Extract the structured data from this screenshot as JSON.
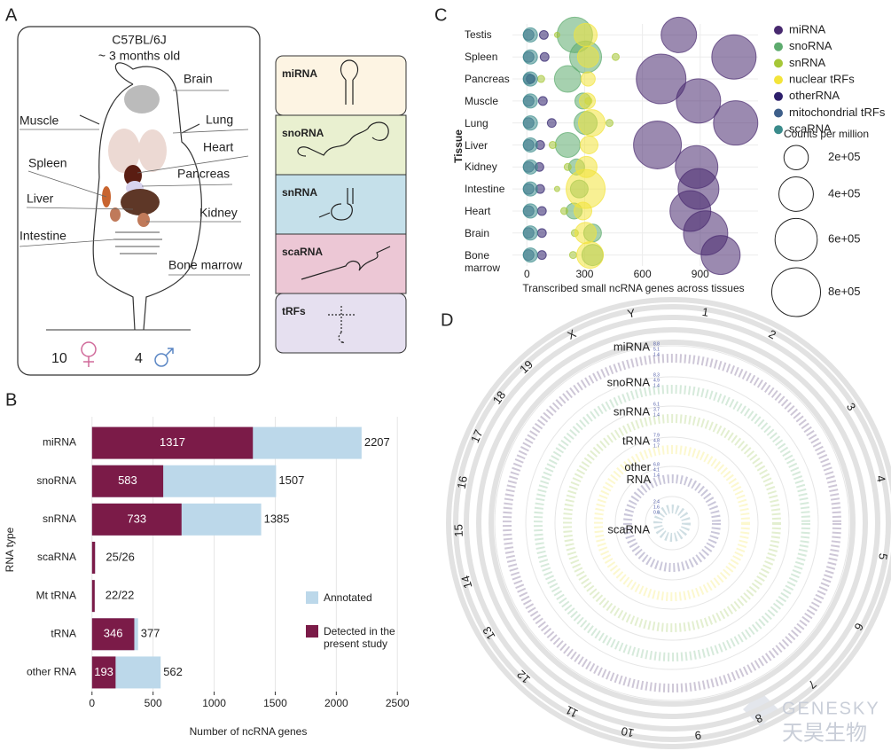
{
  "panel_labels": [
    "A",
    "B",
    "C",
    "D"
  ],
  "panel_a": {
    "title": "C57BL/6J",
    "subtitle": "~ 3 months old",
    "organs": [
      "Brain",
      "Muscle",
      "Lung",
      "Heart",
      "Spleen",
      "Pancreas",
      "Liver",
      "Kidney",
      "Intestine",
      "Bone marrow"
    ],
    "female_count": "10",
    "male_count": "4",
    "rna_types": [
      "miRNA",
      "snoRNA",
      "snRNA",
      "scaRNA",
      "tRFs"
    ]
  },
  "chart_data": [
    {
      "type": "bar",
      "orientation": "horizontal",
      "categories": [
        "miRNA",
        "snoRNA",
        "snRNA",
        "scaRNA",
        "Mt tRNA",
        "tRNA",
        "other RNA"
      ],
      "series": [
        {
          "name": "Annotated",
          "color": "#bcd8ea",
          "values": [
            2207,
            1507,
            1385,
            26,
            22,
            377,
            562
          ],
          "value_labels": [
            "2207",
            "1507",
            "1385",
            null,
            null,
            "377",
            "562"
          ]
        },
        {
          "name": "Detected in the present study",
          "color": "#7b1b48",
          "values": [
            1317,
            583,
            733,
            25,
            22,
            346,
            193
          ],
          "value_labels": [
            "1317",
            "583",
            "733",
            null,
            null,
            "346",
            "193"
          ]
        }
      ],
      "ratio_labels": [
        null,
        null,
        null,
        "25/26",
        "22/22",
        null,
        null
      ],
      "xlim": [
        -100,
        2600
      ],
      "xticks": [
        0,
        500,
        1000,
        1500,
        2000,
        2500
      ],
      "xlabel": "Number of ncRNA genes",
      "ylabel": "RNA type",
      "grid": true,
      "legend": "right"
    },
    {
      "type": "bubble",
      "categories": [
        "Testis",
        "Spleen",
        "Pancreas",
        "Muscle",
        "Lung",
        "Liver",
        "Kidney",
        "Intestine",
        "Heart",
        "Brain",
        "Bone marrow"
      ],
      "series": [
        {
          "name": "miRNA",
          "color": "#48296f",
          "values": [
            789,
            1075,
            697,
            891,
            1084,
            678,
            881,
            891,
            849,
            928,
            1006
          ],
          "sizes": [
            423000,
            661000,
            830000,
            661000,
            661000,
            770000,
            610000,
            560000,
            560000,
            661000,
            512000
          ]
        },
        {
          "name": "snoRNA",
          "color": "#5dab6e",
          "values": [
            249,
            305,
            212,
            291,
            305,
            212,
            258,
            272,
            245,
            341,
            341
          ],
          "sizes": [
            423000,
            343000,
            238000,
            86000,
            179000,
            207000,
            86000,
            106000,
            86000,
            106000,
            152000
          ]
        },
        {
          "name": "snRNA",
          "color": "#a6c737",
          "values": [
            157,
            461,
            74,
            320,
            429,
            134,
            212,
            157,
            194,
            249,
            240
          ],
          "sizes": [
            9500,
            17000,
            17000,
            17000,
            17000,
            17000,
            17000,
            9500,
            17000,
            17000,
            17000
          ]
        },
        {
          "name": "nuclear tRFs",
          "color": "#f3e43a",
          "values": [
            305,
            318,
            318,
            314,
            337,
            323,
            309,
            305,
            291,
            305,
            328
          ],
          "sizes": [
            179000,
            152000,
            68000,
            86000,
            238000,
            106000,
            152000,
            512000,
            106000,
            152000,
            238000
          ]
        },
        {
          "name": "otherRNA",
          "color": "#2d1f6b",
          "values": [
            88,
            92,
            20,
            83,
            129,
            69,
            65,
            69,
            78,
            78,
            78
          ],
          "sizes": [
            26000,
            26000,
            26000,
            26000,
            26000,
            26000,
            26000,
            26000,
            26000,
            26000,
            26000
          ]
        },
        {
          "name": "mitochondrial tRFs",
          "color": "#3e5f8a",
          "values": [
            9,
            9,
            9,
            9,
            9,
            9,
            9,
            9,
            9,
            9,
            9
          ],
          "sizes": [
            38000,
            38000,
            38000,
            38000,
            38000,
            38000,
            38000,
            38000,
            38000,
            38000,
            38000
          ]
        },
        {
          "name": "scaRNA",
          "color": "#3a8b8b",
          "values": [
            18,
            18,
            18,
            18,
            18,
            18,
            18,
            18,
            18,
            18,
            18
          ],
          "sizes": [
            68000,
            68000,
            68000,
            68000,
            68000,
            68000,
            68000,
            68000,
            68000,
            68000,
            68000
          ]
        }
      ],
      "xlim": [
        -75,
        1200
      ],
      "xticks": [
        0,
        300,
        600,
        900
      ],
      "xlabel": "Transcribed small ncRNA genes across tissues",
      "ylabel": "Tissue",
      "grid": true,
      "legend": "right",
      "size_legend": {
        "title": "Counts per million",
        "ticks": [
          {
            "value": 200000,
            "label": "2e+05"
          },
          {
            "value": 400000,
            "label": "4e+05"
          },
          {
            "value": 600000,
            "label": "6e+05"
          },
          {
            "value": 800000,
            "label": "8e+05"
          }
        ]
      }
    }
  ],
  "panel_d": {
    "chromosomes": [
      "1",
      "2",
      "3",
      "4",
      "5",
      "6",
      "7",
      "8",
      "9",
      "10",
      "11",
      "12",
      "13",
      "14",
      "15",
      "16",
      "17",
      "18",
      "19",
      "X",
      "Y"
    ],
    "rings": [
      {
        "name": "miRNA",
        "ticks": [
          "8.8",
          "5.1",
          "1.4"
        ]
      },
      {
        "name": "snoRNA",
        "ticks": [
          "8.3",
          "4.9",
          "1.4"
        ]
      },
      {
        "name": "snRNA",
        "ticks": [
          "6.1",
          "3.7",
          "1.4"
        ]
      },
      {
        "name": "tRNA",
        "ticks": [
          "7.9",
          "4.8",
          "1.7"
        ]
      },
      {
        "name": "other RNA",
        "ticks": [
          "6.8",
          "4.1",
          "1.4"
        ]
      },
      {
        "name": "scaRNA",
        "ticks": [
          "2.4",
          "1.6",
          "0.8"
        ]
      }
    ]
  },
  "watermark": "GENESKY",
  "watermark_cn": "天昊生物"
}
